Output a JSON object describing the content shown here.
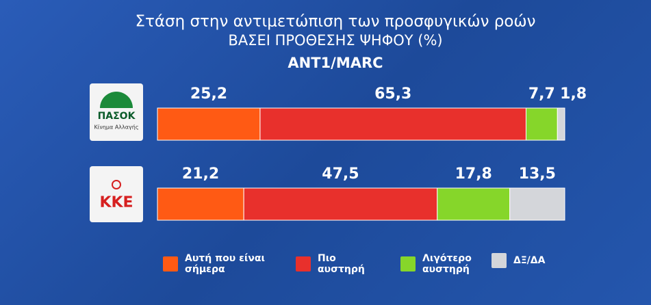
{
  "chart_data": {
    "type": "stacked_bar",
    "orientation": "horizontal",
    "title": "Στάση στην αντιμετώπιση των προσφυγικών ροών",
    "subtitle": "ΒΑΣΕΙ ΠΡΟΘΕΣΗΣ ΨΗΦΟΥ (%)",
    "source": "ANT1/MARC",
    "categories": [
      "ΠΑΣΟΚ",
      "ΚΚΕ"
    ],
    "annotations": [
      "Κίνημα Αλλαγής"
    ],
    "xlim": [
      0,
      100
    ],
    "series": [
      {
        "name": "Αυτή που είναι σήμερα",
        "color": "#ff5a14",
        "values": [
          25.2,
          21.2
        ],
        "value_labels": [
          "25,2",
          "21,2"
        ]
      },
      {
        "name": "Πιο αυστηρή",
        "color": "#e8302c",
        "values": [
          65.3,
          47.5
        ],
        "value_labels": [
          "65,3",
          "47,5"
        ]
      },
      {
        "name": "Λιγότερο αυστηρή",
        "color": "#86d62a",
        "values": [
          7.7,
          17.8
        ],
        "value_labels": [
          "7,7",
          "17,8"
        ]
      },
      {
        "name": "ΔΞ/ΔΑ",
        "color": "#d4d6da",
        "values": [
          1.8,
          13.5
        ],
        "value_labels": [
          "1,8",
          "13,5"
        ]
      }
    ]
  }
}
